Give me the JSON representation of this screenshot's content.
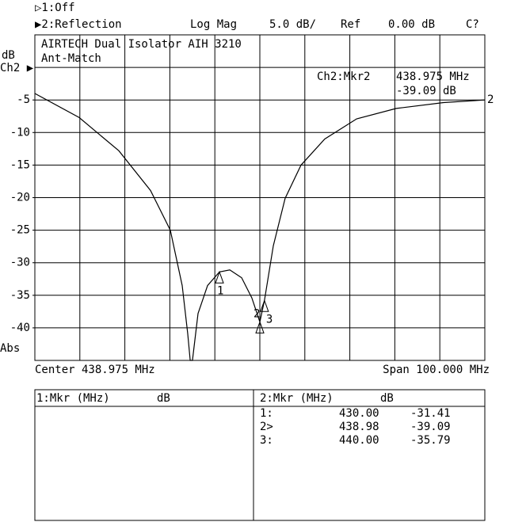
{
  "header": {
    "ch1": "▷1:Off",
    "ch2": "▶2:Reflection",
    "format": "Log Mag",
    "scale": "5.0 dB/",
    "ref_label": "Ref",
    "ref_value": "0.00 dB",
    "cal": "C?"
  },
  "chart_data": {
    "type": "line",
    "title": "AIRTECH Dual Isolator AIH 3210",
    "subtitle": "Ant-Match",
    "y_label": "dB",
    "ref_marker": "Ch2 ▶",
    "y_mode": "Abs",
    "x_left_label": "Center 438.975 MHz",
    "x_right_label": "Span 100.000 MHz",
    "readout": [
      "Ch2:Mkr2",
      "438.975 MHz",
      "-39.09 dB"
    ],
    "xlim": [
      388.975,
      488.975
    ],
    "ylim": [
      -45,
      5
    ],
    "yticks": [
      -5,
      -10,
      -15,
      -20,
      -25,
      -30,
      -35,
      -40
    ],
    "grid": true,
    "series": [
      {
        "name": "2",
        "color": "#000000",
        "x": [
          388.975,
          398.83,
          407.64,
          414.68,
          419.08,
          421.72,
          422.95,
          423.5,
          424.0,
          425.24,
          427.36,
          430.0,
          432.3,
          434.93,
          437.2,
          438.98,
          440.0,
          441.97,
          444.6,
          448.13,
          453.4,
          460.5,
          469.3,
          479.8,
          488.975
        ],
        "values": [
          -4.0,
          -7.7,
          -12.8,
          -18.9,
          -25.0,
          -33.5,
          -40.9,
          -45,
          -45,
          -37.8,
          -33.5,
          -31.41,
          -31.1,
          -32.3,
          -35.4,
          -39.09,
          -35.79,
          -27.4,
          -20.1,
          -15.0,
          -11.0,
          -7.9,
          -6.3,
          -5.4,
          -5.0
        ]
      }
    ],
    "markers": [
      {
        "name": "1",
        "x": 430.0,
        "y": -31.41
      },
      {
        "name": "2",
        "x": 438.98,
        "y": -39.09
      },
      {
        "name": "3",
        "x": 440.0,
        "y": -35.79
      }
    ]
  },
  "marker_tables": [
    {
      "title": "1:Mkr (MHz)",
      "unit": "dB",
      "rows": []
    },
    {
      "title": "2:Mkr (MHz)",
      "unit": "dB",
      "rows": [
        [
          "1:",
          "430.00",
          "-31.41"
        ],
        [
          "2>",
          "438.98",
          "-39.09"
        ],
        [
          "3:",
          "440.00",
          "-35.79"
        ]
      ]
    }
  ]
}
